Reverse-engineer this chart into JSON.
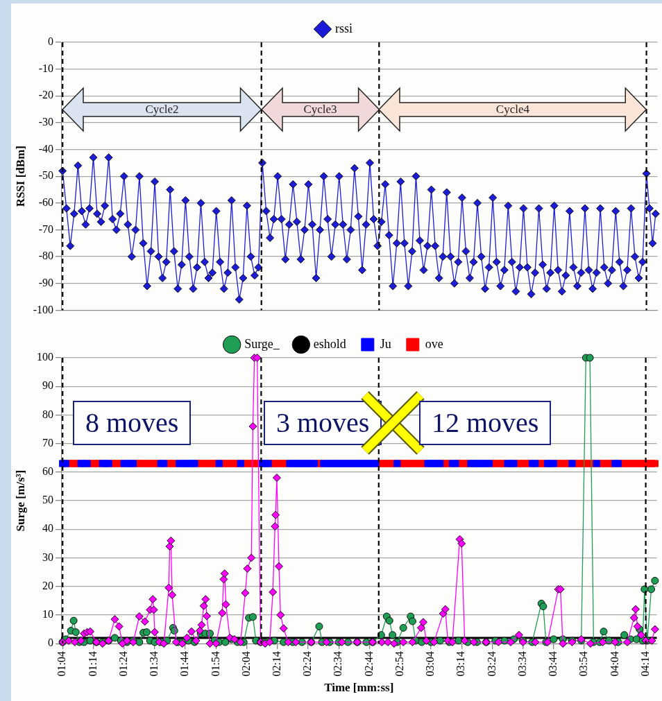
{
  "chart_data": [
    {
      "type": "line",
      "ylabel": "RSSI [dBm]",
      "xlim": [
        63.5,
        257.6
      ],
      "ylim": [
        -100,
        0
      ],
      "yticks": [
        -100,
        -90,
        -80,
        -70,
        -60,
        -50,
        -40,
        -30,
        -20,
        -10,
        0
      ],
      "tick_labels": "y",
      "grid": "y",
      "legend": "top",
      "marker": "diamond",
      "line_style": "solid",
      "ref_lines": [
        {
          "axis": "x",
          "value": 64,
          "color": "#000000",
          "line_style": "dashed"
        },
        {
          "axis": "x",
          "value": 128.7,
          "color": "#000000",
          "line_style": "dashed"
        },
        {
          "axis": "x",
          "value": 167,
          "color": "#000000",
          "line_style": "dashed"
        },
        {
          "axis": "x",
          "value": 254,
          "color": "#000000",
          "line_style": "dashed"
        }
      ],
      "annotations": [
        "Cycle2",
        "Cycle3",
        "Cycle4"
      ],
      "series": [
        {
          "name": "rssi",
          "color": "#1c1cd8",
          "x": [
            64,
            65.25,
            66.5,
            67.75,
            69,
            70.25,
            71.5,
            72.75,
            74,
            75.25,
            76.5,
            77.75,
            79,
            80.25,
            81.5,
            82.75,
            84,
            85.25,
            86.5,
            87.75,
            89,
            90.25,
            91.5,
            92.75,
            94,
            95.25,
            96.5,
            97.75,
            99,
            100.25,
            101.5,
            102.75,
            104,
            105.25,
            106.5,
            107.75,
            109,
            110.25,
            111.5,
            112.75,
            114,
            115.25,
            116.5,
            117.75,
            119,
            120.25,
            121.5,
            122.75,
            124,
            125.25,
            126.5,
            127.75,
            129,
            130.25,
            131.5,
            132.75,
            134,
            135.25,
            136.5,
            137.75,
            139,
            140.25,
            141.5,
            142.75,
            144,
            145.25,
            146.5,
            147.75,
            149,
            150.25,
            151.5,
            152.75,
            154,
            155.25,
            156.5,
            157.75,
            159,
            160.25,
            161.5,
            162.75,
            164,
            165.25,
            166.5,
            167.75,
            169,
            170.25,
            171.5,
            172.75,
            174,
            175.25,
            176.5,
            177.75,
            179,
            180.25,
            181.5,
            182.75,
            184,
            185.25,
            186.5,
            187.75,
            189,
            190.25,
            191.5,
            192.75,
            194,
            195.25,
            196.5,
            197.75,
            199,
            200.25,
            201.5,
            202.75,
            204,
            205.25,
            206.5,
            207.75,
            209,
            210.25,
            211.5,
            212.75,
            214,
            215.25,
            216.5,
            217.75,
            219,
            220.25,
            221.5,
            222.75,
            224,
            225.25,
            226.5,
            227.75,
            229,
            230.25,
            231.5,
            232.75,
            234,
            235.25,
            236.5,
            237.75,
            239,
            240.25,
            241.5,
            242.75,
            244,
            245.25,
            246.5,
            247.75,
            249,
            250.25,
            251.5,
            252.75,
            254,
            255,
            256,
            257
          ],
          "values": [
            -48,
            -62,
            -76,
            -64,
            -46,
            -63,
            -68,
            -62,
            -43,
            -64,
            -67,
            -61,
            -43,
            -66,
            -70,
            -64,
            -50,
            -68,
            -80,
            -70,
            -50,
            -75,
            -91,
            -78,
            -52,
            -80,
            -88,
            -82,
            -55,
            -78,
            -92,
            -83,
            -59,
            -80,
            -92,
            -84,
            -60,
            -82,
            -88,
            -86,
            -63,
            -82,
            -92,
            -86,
            -59,
            -84,
            -96,
            -88,
            -61,
            -80,
            -87,
            -84,
            -45,
            -63,
            -73,
            -66,
            -50,
            -66,
            -81,
            -68,
            -53,
            -67,
            -81,
            -70,
            -53,
            -68,
            -88,
            -70,
            -50,
            -66,
            -80,
            -68,
            -50,
            -68,
            -81,
            -70,
            -47,
            -65,
            -85,
            -68,
            -45,
            -66,
            -76,
            -67,
            -53,
            -72,
            -91,
            -75,
            -52,
            -75,
            -91,
            -78,
            -50,
            -74,
            -85,
            -76,
            -55,
            -76,
            -88,
            -80,
            -56,
            -80,
            -90,
            -82,
            -58,
            -78,
            -88,
            -82,
            -60,
            -80,
            -92,
            -84,
            -58,
            -82,
            -91,
            -85,
            -61,
            -82,
            -93,
            -84,
            -62,
            -84,
            -94,
            -86,
            -62,
            -83,
            -92,
            -86,
            -61,
            -85,
            -93,
            -87,
            -63,
            -84,
            -91,
            -86,
            -62,
            -85,
            -92,
            -86,
            -62,
            -84,
            -90,
            -85,
            -63,
            -82,
            -91,
            -85,
            -62,
            -80,
            -88,
            -82,
            -49,
            -62,
            -75,
            -64
          ]
        }
      ]
    },
    {
      "type": "line",
      "xlabel": "Time [mm:ss]",
      "ylabel": "Surge [m/s³]",
      "xlim": [
        63.5,
        257.6
      ],
      "ylim": [
        0,
        100
      ],
      "xticks": [
        {
          "value": 64,
          "label": "01:04"
        },
        {
          "value": 74,
          "label": "01:14"
        },
        {
          "value": 84,
          "label": "01:24"
        },
        {
          "value": 94,
          "label": "01:34"
        },
        {
          "value": 104,
          "label": "01:44"
        },
        {
          "value": 114,
          "label": "01:54"
        },
        {
          "value": 124,
          "label": "02:04"
        },
        {
          "value": 134,
          "label": "02:14"
        },
        {
          "value": 144,
          "label": "02:24"
        },
        {
          "value": 154,
          "label": "02:34"
        },
        {
          "value": 164,
          "label": "02:44"
        },
        {
          "value": 174,
          "label": "02:54"
        },
        {
          "value": 184,
          "label": "03:04"
        },
        {
          "value": 194,
          "label": "03:14"
        },
        {
          "value": 204,
          "label": "03:24"
        },
        {
          "value": 214,
          "label": "03:34"
        },
        {
          "value": 224,
          "label": "03:44"
        },
        {
          "value": 234,
          "label": "03:54"
        },
        {
          "value": 244,
          "label": "04:04"
        },
        {
          "value": 254,
          "label": "04:14"
        }
      ],
      "yticks": [
        0,
        10,
        20,
        30,
        40,
        50,
        60,
        70,
        80,
        90,
        100
      ],
      "grid": "y",
      "legend": "top",
      "annotations": [
        "8 moves",
        "3 moves",
        "12 moves"
      ],
      "ref_lines": [
        {
          "axis": "x",
          "value": 64,
          "color": "#000000",
          "line_style": "dashed"
        },
        {
          "axis": "x",
          "value": 128.7,
          "color": "#000000",
          "line_style": "dashed"
        },
        {
          "axis": "x",
          "value": 167,
          "color": "#000000",
          "line_style": "dashed"
        },
        {
          "axis": "x",
          "value": 254,
          "color": "#000000",
          "line_style": "dashed"
        }
      ],
      "series": [
        {
          "color": "#ff00ff",
          "marker": "diamond",
          "x": [
            64,
            66,
            68,
            70,
            71,
            72,
            73,
            75,
            77,
            79,
            81,
            82.4,
            83.5,
            85,
            87,
            89,
            90.8,
            92.5,
            93.4,
            93.7,
            94,
            95.5,
            97,
            98.6,
            98.9,
            99.3,
            99.7,
            101,
            103,
            104.5,
            106,
            107.5,
            108.7,
            109.3,
            110,
            110.6,
            111,
            112,
            114,
            116,
            116.5,
            116.8,
            117.2,
            118.5,
            120,
            122,
            123.5,
            124.2,
            125.5,
            126,
            126.5,
            127.4,
            128.5,
            130,
            131.5,
            132.5,
            133.2,
            133.4,
            133.8,
            134.5,
            135,
            136,
            137.5,
            140,
            145,
            150,
            155,
            160,
            165,
            168,
            170,
            172,
            175,
            178,
            180.8,
            181.5,
            182.5,
            185,
            188,
            188.7,
            189.5,
            191,
            193.4,
            194,
            195,
            198,
            202,
            206,
            210,
            212.7,
            214,
            218,
            222,
            225.5,
            226.2,
            227,
            230,
            233,
            236,
            240,
            244,
            248,
            250.2,
            250.7,
            251.3,
            252.5,
            254,
            256,
            257
          ],
          "values": [
            0.5,
            1,
            0.5,
            1,
            3.5,
            4,
            4.2,
            0.5,
            0,
            1,
            8.5,
            6,
            0,
            1,
            0.5,
            9.5,
            7.7,
            11.8,
            15.5,
            11.8,
            4,
            0.5,
            0,
            19.5,
            34,
            36,
            17,
            0.5,
            0,
            2,
            4.2,
            1,
            4.5,
            6.5,
            13.2,
            15.5,
            9.6,
            0,
            0,
            10.7,
            22.5,
            24.5,
            13.7,
            2,
            1.5,
            0.5,
            17.7,
            26.2,
            30,
            76,
            100,
            100,
            0.5,
            0,
            0.5,
            18,
            41,
            45,
            58,
            27,
            10,
            5.3,
            0.5,
            0.5,
            0.5,
            0.5,
            0.5,
            0.5,
            0.5,
            0.5,
            0.5,
            0,
            0.5,
            0.5,
            5.5,
            7.5,
            1,
            0.5,
            10.5,
            12,
            1,
            0.5,
            36.5,
            35,
            1,
            0.5,
            0.5,
            0.5,
            0.5,
            3,
            0.5,
            0.5,
            0.5,
            19,
            19,
            0,
            0.5,
            1.5,
            0,
            0.5,
            0.5,
            0.5,
            9,
            12,
            6,
            3,
            1,
            1,
            5
          ]
        },
        {
          "name": "Surge_",
          "color": "#1f9e55",
          "marker": "circle",
          "x": [
            64,
            65,
            66.7,
            67.6,
            68.3,
            69.5,
            71,
            73,
            75,
            77,
            79,
            81,
            83,
            85,
            87,
            89,
            90.3,
            91.4,
            92.5,
            94,
            96,
            98,
            100,
            100.4,
            101.5,
            103,
            105,
            107,
            109,
            110.5,
            112,
            113.5,
            115,
            117,
            119,
            121,
            123,
            124.7,
            126,
            127,
            128.5,
            130,
            133,
            136,
            139,
            142,
            145,
            147.6,
            148.5,
            151,
            154,
            157,
            160,
            163,
            165,
            167.8,
            169.6,
            170.5,
            171.5,
            173,
            175,
            177.4,
            178,
            179,
            181,
            184,
            187,
            190,
            193,
            196,
            199,
            202,
            205,
            208,
            211,
            214,
            217,
            220,
            220.6,
            221.5,
            224,
            227,
            230,
            233,
            234.5,
            235.8,
            237,
            239,
            240.3,
            242,
            245,
            247,
            249,
            251,
            252,
            253,
            253.6,
            254.5,
            255.8,
            257
          ],
          "values": [
            0.5,
            1.5,
            4.5,
            8,
            4,
            0.5,
            0.5,
            1,
            0.5,
            0.5,
            1,
            2,
            1,
            0.5,
            1,
            0.5,
            3.8,
            4,
            1,
            0.5,
            0.5,
            1,
            5.5,
            4.5,
            0.5,
            0.5,
            1,
            0.5,
            3.5,
            3.5,
            3.5,
            1,
            0.5,
            0.5,
            1.5,
            0.5,
            0.5,
            9,
            9.3,
            1,
            0.5,
            0.5,
            1,
            0.5,
            0.5,
            0.5,
            0.5,
            6,
            0.5,
            0.5,
            0.5,
            0.5,
            0.5,
            0.5,
            0.5,
            3,
            9.5,
            8,
            3,
            0.5,
            5.5,
            9.5,
            7.8,
            1,
            0.5,
            0.5,
            1,
            0.5,
            1,
            0.5,
            0.5,
            0.5,
            1,
            1,
            1.5,
            1,
            0.5,
            14,
            13,
            0.5,
            1.5,
            1.5,
            1,
            1,
            100,
            100,
            0.5,
            0.5,
            4.2,
            1,
            0.5,
            3,
            1.5,
            1.5,
            5,
            1,
            19,
            1,
            19,
            22
          ]
        },
        {
          "name": "eshold",
          "color": "#000000",
          "marker": "none",
          "x": [
            63.5,
            257.6
          ],
          "values": [
            2,
            2
          ]
        },
        {
          "name": "Ju",
          "type": "scatter",
          "color": "#0000ff",
          "marker": "square",
          "x": [
            64,
            65,
            70,
            71,
            72,
            77,
            78,
            79,
            84,
            85,
            86,
            87,
            96,
            97,
            102,
            103,
            104,
            105,
            106,
            107,
            115,
            122,
            129,
            130,
            131,
            138,
            139,
            140,
            141,
            142,
            143,
            144,
            145,
            146,
            149,
            150,
            151,
            152,
            153,
            154,
            155,
            156,
            157,
            158,
            159,
            160,
            161,
            162,
            163,
            164,
            165,
            166,
            173,
            183,
            184,
            185,
            186,
            187,
            191,
            192,
            197,
            198,
            199,
            200,
            201,
            202,
            203,
            209,
            210,
            211,
            217,
            218,
            222,
            223,
            224,
            230,
            238,
            244,
            245
          ],
          "values": [
            63,
            63,
            63,
            63,
            63,
            63,
            63,
            63,
            63,
            63,
            63,
            63,
            63,
            63,
            63,
            63,
            63,
            63,
            63,
            63,
            63,
            63,
            63,
            63,
            63,
            63,
            63,
            63,
            63,
            63,
            63,
            63,
            63,
            63,
            63,
            63,
            63,
            63,
            63,
            63,
            63,
            63,
            63,
            63,
            63,
            63,
            63,
            63,
            63,
            63,
            63,
            63,
            63,
            63,
            63,
            63,
            63,
            63,
            63,
            63,
            63,
            63,
            63,
            63,
            63,
            63,
            63,
            63,
            63,
            63,
            63,
            63,
            63,
            63,
            63,
            63,
            63,
            63,
            63
          ]
        },
        {
          "name": "ove",
          "type": "scatter",
          "color": "#ff0000",
          "marker": "square",
          "x": [
            66,
            67,
            68,
            69,
            73,
            74,
            75,
            76,
            80,
            81,
            82,
            83,
            88,
            89,
            90,
            91,
            92,
            93,
            94,
            95,
            98,
            99,
            100,
            101,
            108,
            109,
            110,
            111,
            112,
            113,
            114,
            116,
            117,
            118,
            119,
            120,
            121,
            123,
            124,
            125,
            126,
            127,
            128,
            132,
            133,
            134,
            135,
            136,
            137,
            147,
            148,
            167,
            168,
            169,
            170,
            171,
            172,
            174,
            175,
            176,
            177,
            178,
            179,
            180,
            181,
            182,
            188,
            189,
            190,
            193,
            194,
            195,
            196,
            204,
            205,
            206,
            207,
            208,
            212,
            213,
            214,
            215,
            216,
            219,
            220,
            221,
            225,
            226,
            227,
            228,
            229,
            231,
            232,
            233,
            234,
            235,
            236,
            237,
            239,
            240,
            241,
            242,
            243,
            246,
            247,
            248,
            249,
            250,
            251,
            252,
            253,
            254,
            255,
            256,
            257
          ],
          "values": [
            63,
            63,
            63,
            63,
            63,
            63,
            63,
            63,
            63,
            63,
            63,
            63,
            63,
            63,
            63,
            63,
            63,
            63,
            63,
            63,
            63,
            63,
            63,
            63,
            63,
            63,
            63,
            63,
            63,
            63,
            63,
            63,
            63,
            63,
            63,
            63,
            63,
            63,
            63,
            63,
            63,
            63,
            63,
            63,
            63,
            63,
            63,
            63,
            63,
            63,
            63,
            63,
            63,
            63,
            63,
            63,
            63,
            63,
            63,
            63,
            63,
            63,
            63,
            63,
            63,
            63,
            63,
            63,
            63,
            63,
            63,
            63,
            63,
            63,
            63,
            63,
            63,
            63,
            63,
            63,
            63,
            63,
            63,
            63,
            63,
            63,
            63,
            63,
            63,
            63,
            63,
            63,
            63,
            63,
            63,
            63,
            63,
            63,
            63,
            63,
            63,
            63,
            63,
            63,
            63,
            63,
            63,
            63,
            63,
            63,
            63,
            63,
            63,
            63,
            63
          ]
        }
      ]
    }
  ]
}
